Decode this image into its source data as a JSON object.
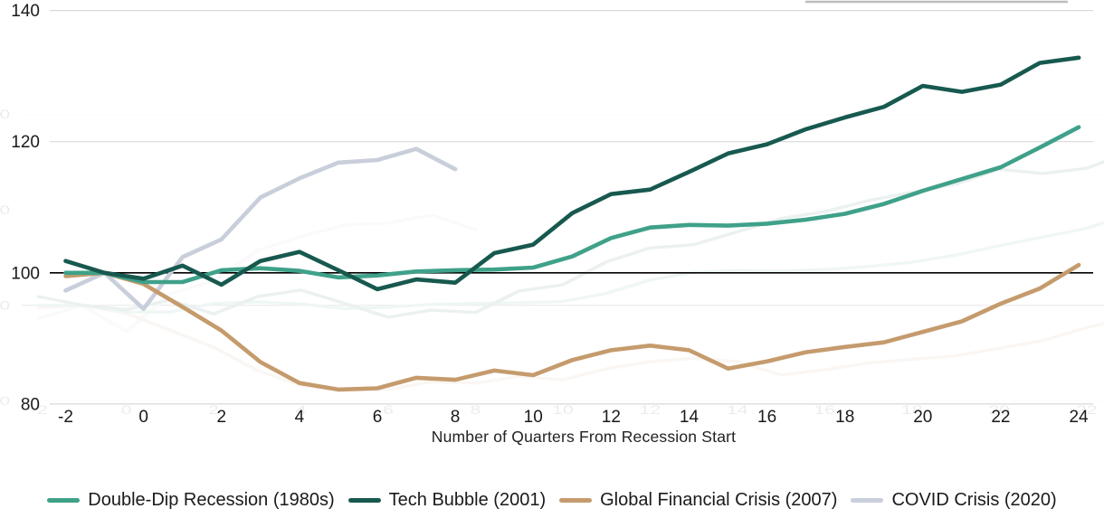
{
  "chart_data": {
    "type": "line",
    "title": "",
    "xlabel": "Number of Quarters From Recession Start",
    "ylabel": "",
    "x_tick_labels": [
      "-2",
      "0",
      "2",
      "4",
      "6",
      "8",
      "10",
      "12",
      "14",
      "16",
      "18",
      "20",
      "22",
      "24"
    ],
    "x_ticks": [
      -2,
      0,
      2,
      4,
      6,
      8,
      10,
      12,
      14,
      16,
      18,
      20,
      22,
      24
    ],
    "y_ticks": [
      80,
      100,
      120,
      140
    ],
    "x_range": [
      -2,
      24
    ],
    "baseline_value": 100,
    "grid": "horizontal",
    "legend_position": "bottom",
    "x": [
      -2,
      -1,
      0,
      1,
      2,
      3,
      4,
      5,
      6,
      7,
      8,
      9,
      10,
      11,
      12,
      13,
      14,
      15,
      16,
      17,
      18,
      19,
      20,
      21,
      22,
      23,
      24
    ],
    "series": [
      {
        "name": "Double-Dip Recession (1980s)",
        "color": "#3FA189",
        "values": [
          100,
          100,
          98.6,
          98.6,
          100.4,
          100.7,
          100.3,
          99.3,
          99.6,
          100.2,
          100.4,
          100.5,
          100.8,
          102.5,
          105.3,
          106.9,
          107.3,
          107.2,
          107.5,
          108.1,
          109,
          110.5,
          112.5,
          114.3,
          116.1,
          119.1,
          122.2
        ]
      },
      {
        "name": "Tech Bubble (2001)",
        "color": "#17594F",
        "values": [
          101.8,
          100,
          99.1,
          101.1,
          98.2,
          101.8,
          103.2,
          100.4,
          97.5,
          99,
          98.5,
          103,
          104.3,
          109.1,
          112,
          112.7,
          115.4,
          118.2,
          119.6,
          121.9,
          123.7,
          125.3,
          128.5,
          127.6,
          128.7,
          132,
          132.8
        ]
      },
      {
        "name": "Global Financial Crisis (2007)",
        "color": "#C59B6D",
        "values": [
          99.5,
          100,
          98.3,
          94.8,
          91.2,
          86.4,
          83.2,
          82.2,
          82.4,
          84,
          83.7,
          85.1,
          84.4,
          86.7,
          88.2,
          88.9,
          88.2,
          85.4,
          86.5,
          87.9,
          88.7,
          89.4,
          91,
          92.6,
          95.3,
          97.6,
          101.2
        ]
      },
      {
        "name": "COVID Crisis (2020)",
        "color": "#C9CEDB",
        "values": [
          97.3,
          100,
          94.5,
          102.4,
          105.1,
          111.5,
          114.4,
          116.8,
          117.2,
          118.9,
          115.8,
          null,
          null,
          null,
          null,
          null,
          null,
          null,
          null,
          null,
          null,
          null,
          null,
          null,
          null,
          null,
          null
        ]
      }
    ],
    "colors": {
      "gridline": "#d9d9d9",
      "baseline": "#000000",
      "tick_text": "#1a1a1a",
      "axis_title_text": "#222222"
    }
  }
}
